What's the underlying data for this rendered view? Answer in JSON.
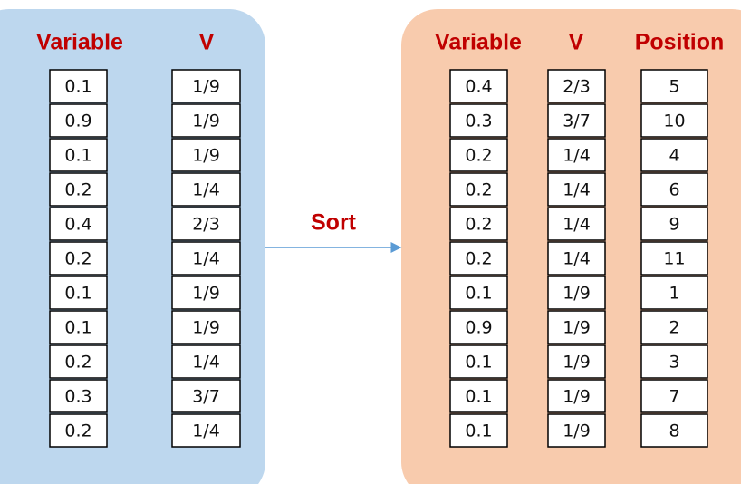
{
  "panels": [
    {
      "columns": [
        {
          "header": "Variable",
          "cells": [
            "0.1",
            "0.9",
            "0.1",
            "0.2",
            "0.4",
            "0.2",
            "0.1",
            "0.1",
            "0.2",
            "0.3",
            "0.2"
          ]
        },
        {
          "header": "V",
          "cells": [
            "1/9",
            "1/9",
            "1/9",
            "1/4",
            "2/3",
            "1/4",
            "1/9",
            "1/9",
            "1/4",
            "3/7",
            "1/4"
          ]
        }
      ]
    },
    {
      "columns": [
        {
          "header": "Variable",
          "cells": [
            "0.4",
            "0.3",
            "0.2",
            "0.2",
            "0.2",
            "0.2",
            "0.1",
            "0.9",
            "0.1",
            "0.1",
            "0.1"
          ]
        },
        {
          "header": "V",
          "cells": [
            "2/3",
            "3/7",
            "1/4",
            "1/4",
            "1/4",
            "1/4",
            "1/9",
            "1/9",
            "1/9",
            "1/9",
            "1/9"
          ]
        },
        {
          "header": "Position",
          "cells": [
            "5",
            "10",
            "4",
            "6",
            "9",
            "11",
            "1",
            "2",
            "3",
            "7",
            "8"
          ]
        }
      ]
    }
  ],
  "arrow_label": "Sort"
}
